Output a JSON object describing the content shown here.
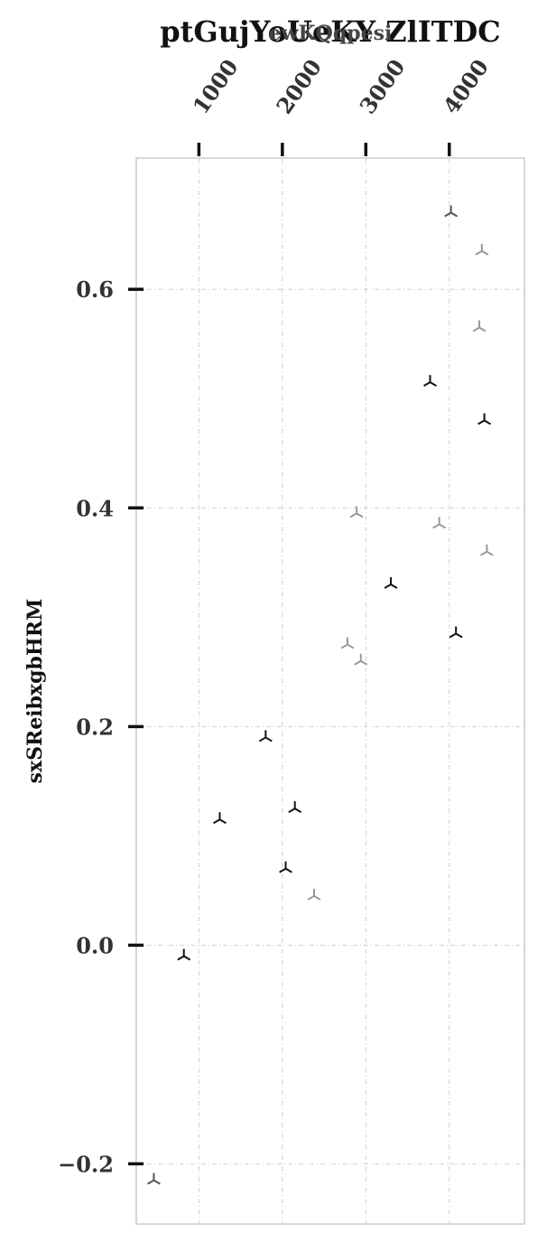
{
  "chart_data": {
    "type": "scatter",
    "title": "ptGujYoUeKY ZlITDC",
    "xlabel": "ewKQqpesi",
    "ylabel": "sxSReibxgbHRM",
    "xlim": [
      250,
      4900
    ],
    "ylim": [
      -0.255,
      0.72
    ],
    "xticks": [
      1000,
      2000,
      3000,
      4000
    ],
    "xtick_labels": [
      "1000",
      "2000",
      "3000",
      "4000"
    ],
    "yticks": [
      -0.2,
      0.0,
      0.2,
      0.4,
      0.6
    ],
    "ytick_labels": [
      "−0.2",
      "0.0",
      "0.2",
      "0.4",
      "0.6"
    ],
    "x_axis_position": "top",
    "grid": true,
    "marker": "tri_down",
    "series": [
      {
        "color": "#111111",
        "x": [
          1800,
          1250,
          2150,
          2040,
          820,
          3300,
          3770,
          4080,
          4420
        ],
        "y": [
          0.19,
          0.115,
          0.125,
          0.07,
          -0.01,
          0.33,
          0.515,
          0.285,
          0.48
        ]
      },
      {
        "color": "#555555",
        "x": [
          4020,
          460
        ],
        "y": [
          0.67,
          -0.215
        ]
      },
      {
        "color": "#999999",
        "x": [
          2380,
          2780,
          2940,
          2890,
          3880,
          4450,
          4360,
          4390
        ],
        "y": [
          0.045,
          0.275,
          0.26,
          0.395,
          0.385,
          0.36,
          0.565,
          0.635
        ]
      }
    ]
  }
}
